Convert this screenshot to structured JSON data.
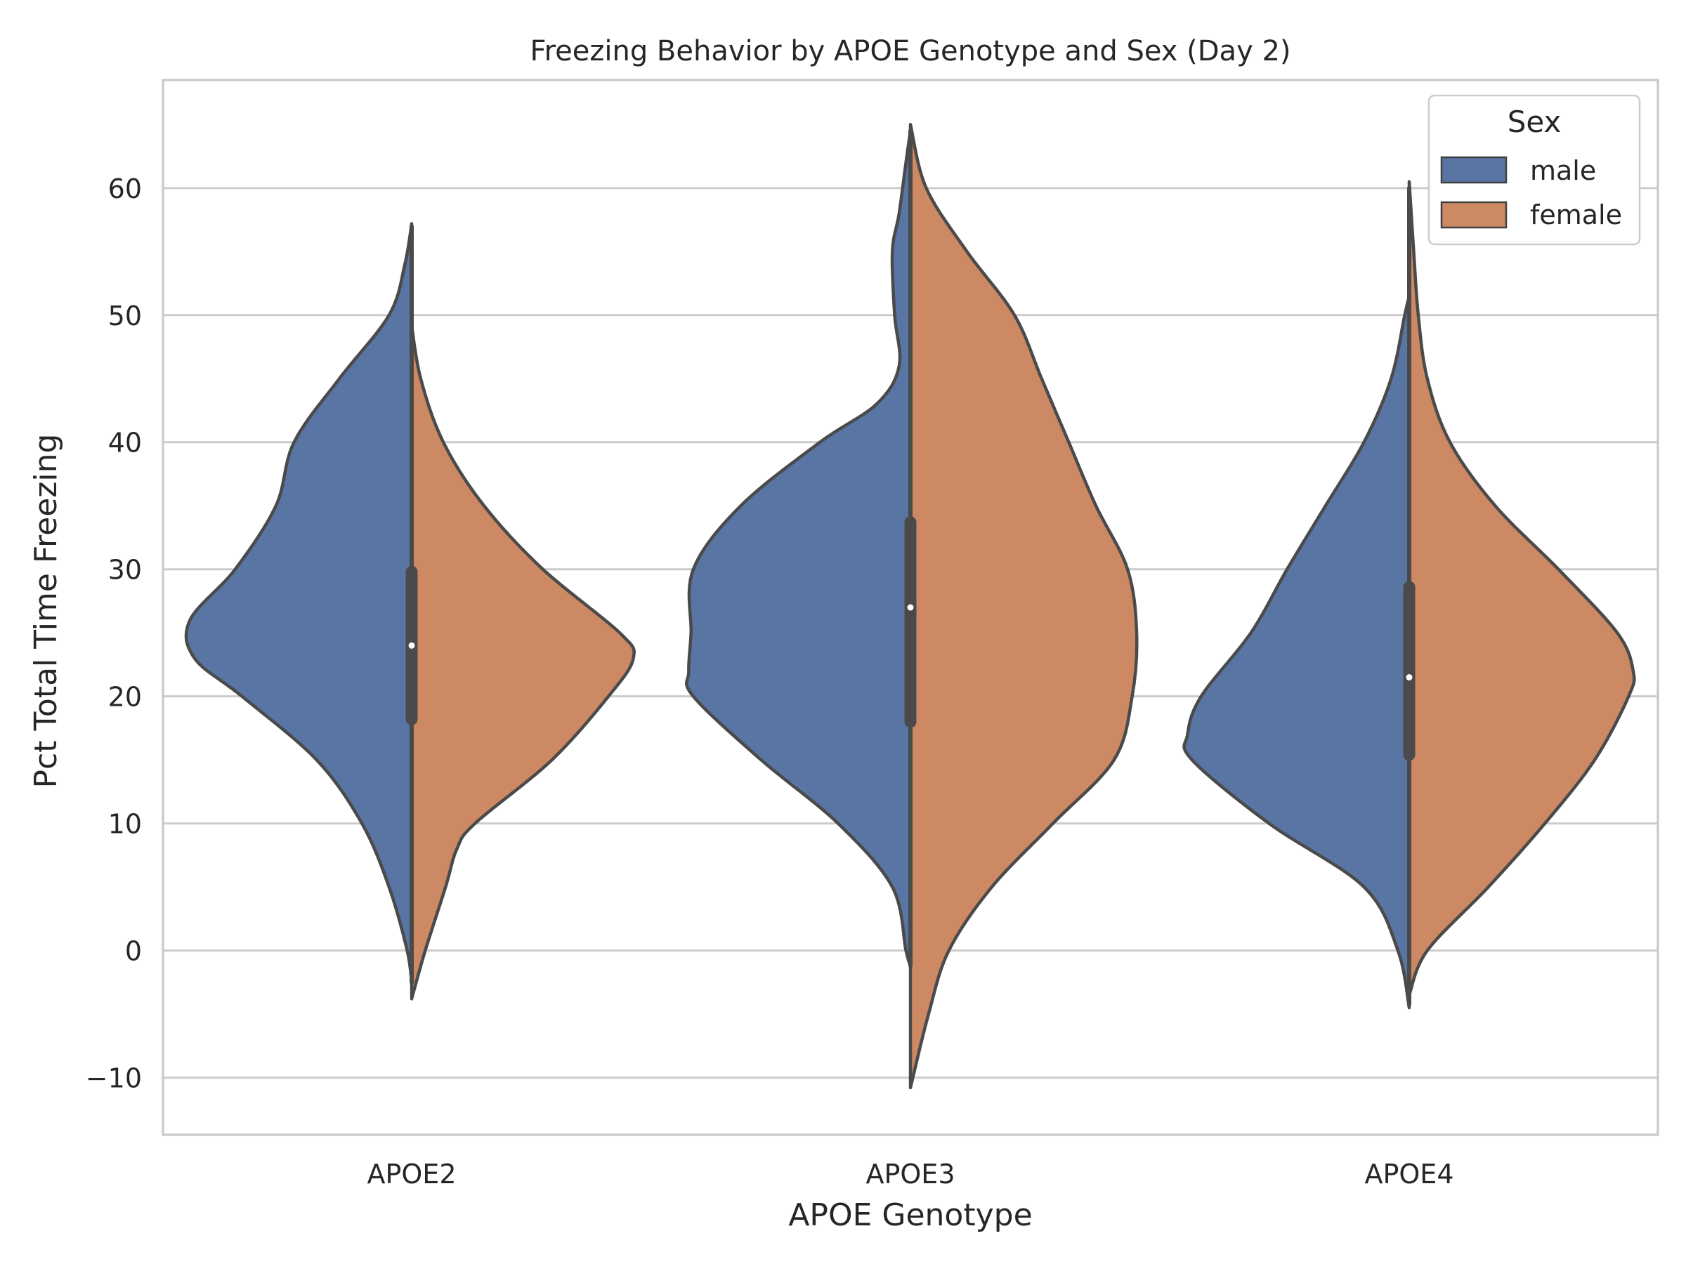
{
  "chart_data": {
    "type": "violin",
    "title": "Freezing Behavior by APOE Genotype and Sex (Day 2)",
    "xlabel": "APOE Genotype",
    "ylabel": "Pct Total Time Freezing",
    "categories": [
      "APOE2",
      "APOE3",
      "APOE4"
    ],
    "ylim": [
      -14.5,
      68.5
    ],
    "yticks": [
      -10,
      0,
      10,
      20,
      30,
      40,
      50,
      60
    ],
    "ytick_labels": [
      "−10",
      "0",
      "10",
      "20",
      "30",
      "40",
      "50",
      "60"
    ],
    "grid": "horizontal",
    "legend": {
      "title": "Sex",
      "placement": "top-right"
    },
    "colors": {
      "male": "#5975a4",
      "female": "#cc8963",
      "outline": "#4a4a4a",
      "grid": "#cccccc",
      "frame": "#cccccc"
    },
    "series": [
      {
        "name": "male",
        "color": "#5975a4",
        "violins": [
          {
            "category": "APOE2",
            "profile": [
              [
                -2.5,
                0.0
              ],
              [
                0,
                0.02
              ],
              [
                5,
                0.1
              ],
              [
                10,
                0.22
              ],
              [
                15,
                0.42
              ],
              [
                20,
                0.75
              ],
              [
                23,
                0.96
              ],
              [
                26,
                0.98
              ],
              [
                30,
                0.78
              ],
              [
                35,
                0.6
              ],
              [
                40,
                0.52
              ],
              [
                45,
                0.32
              ],
              [
                50,
                0.1
              ],
              [
                54,
                0.03
              ],
              [
                57.2,
                0.0
              ]
            ]
          },
          {
            "category": "APOE3",
            "profile": [
              [
                -1.2,
                0.0
              ],
              [
                0,
                0.02
              ],
              [
                5,
                0.08
              ],
              [
                10,
                0.32
              ],
              [
                15,
                0.66
              ],
              [
                20,
                0.96
              ],
              [
                22,
                0.98
              ],
              [
                25,
                0.97
              ],
              [
                30,
                0.96
              ],
              [
                35,
                0.75
              ],
              [
                40,
                0.4
              ],
              [
                43,
                0.15
              ],
              [
                46,
                0.05
              ],
              [
                50,
                0.07
              ],
              [
                55,
                0.08
              ],
              [
                58,
                0.05
              ],
              [
                62,
                0.02
              ],
              [
                64.5,
                0.0
              ]
            ]
          },
          {
            "category": "APOE4",
            "profile": [
              [
                -4.5,
                0.0
              ],
              [
                0,
                0.05
              ],
              [
                5,
                0.2
              ],
              [
                10,
                0.62
              ],
              [
                15,
                0.96
              ],
              [
                17,
                0.98
              ],
              [
                20,
                0.92
              ],
              [
                25,
                0.7
              ],
              [
                30,
                0.54
              ],
              [
                35,
                0.37
              ],
              [
                40,
                0.2
              ],
              [
                45,
                0.08
              ],
              [
                50,
                0.02
              ],
              [
                51.5,
                0.0
              ]
            ]
          }
        ]
      },
      {
        "name": "female",
        "color": "#cc8963",
        "violins": [
          {
            "category": "APOE2",
            "profile": [
              [
                -3.8,
                0.0
              ],
              [
                0,
                0.06
              ],
              [
                5,
                0.15
              ],
              [
                8,
                0.2
              ],
              [
                10,
                0.28
              ],
              [
                15,
                0.62
              ],
              [
                20,
                0.87
              ],
              [
                23,
                0.98
              ],
              [
                25,
                0.92
              ],
              [
                30,
                0.58
              ],
              [
                35,
                0.32
              ],
              [
                40,
                0.14
              ],
              [
                45,
                0.04
              ],
              [
                49.2,
                0.0
              ]
            ]
          },
          {
            "category": "APOE3",
            "profile": [
              [
                -10.8,
                0.0
              ],
              [
                -5,
                0.08
              ],
              [
                0,
                0.17
              ],
              [
                5,
                0.36
              ],
              [
                10,
                0.63
              ],
              [
                15,
                0.9
              ],
              [
                20,
                0.98
              ],
              [
                25,
                1.0
              ],
              [
                30,
                0.96
              ],
              [
                35,
                0.82
              ],
              [
                40,
                0.7
              ],
              [
                45,
                0.58
              ],
              [
                50,
                0.46
              ],
              [
                55,
                0.25
              ],
              [
                60,
                0.07
              ],
              [
                65,
                0.0
              ]
            ]
          },
          {
            "category": "APOE4",
            "profile": [
              [
                -3.5,
                0.0
              ],
              [
                0,
                0.08
              ],
              [
                5,
                0.35
              ],
              [
                10,
                0.6
              ],
              [
                15,
                0.82
              ],
              [
                20,
                0.97
              ],
              [
                22,
                0.99
              ],
              [
                25,
                0.92
              ],
              [
                30,
                0.66
              ],
              [
                35,
                0.38
              ],
              [
                40,
                0.18
              ],
              [
                45,
                0.08
              ],
              [
                50,
                0.04
              ],
              [
                55,
                0.02
              ],
              [
                60.5,
                0.0
              ]
            ]
          }
        ]
      }
    ],
    "box": [
      {
        "category": "APOE2",
        "q1": 18.2,
        "q3": 29.8,
        "median": 24.0,
        "whisker_low": -2.5,
        "whisker_high": 57.0
      },
      {
        "category": "APOE3",
        "q1": 18.0,
        "q3": 33.7,
        "median": 27.0,
        "whisker_low": -1.2,
        "whisker_high": 64.5
      },
      {
        "category": "APOE4",
        "q1": 15.4,
        "q3": 28.6,
        "median": 21.5,
        "whisker_low": -4.2,
        "whisker_high": 60.0
      }
    ]
  }
}
